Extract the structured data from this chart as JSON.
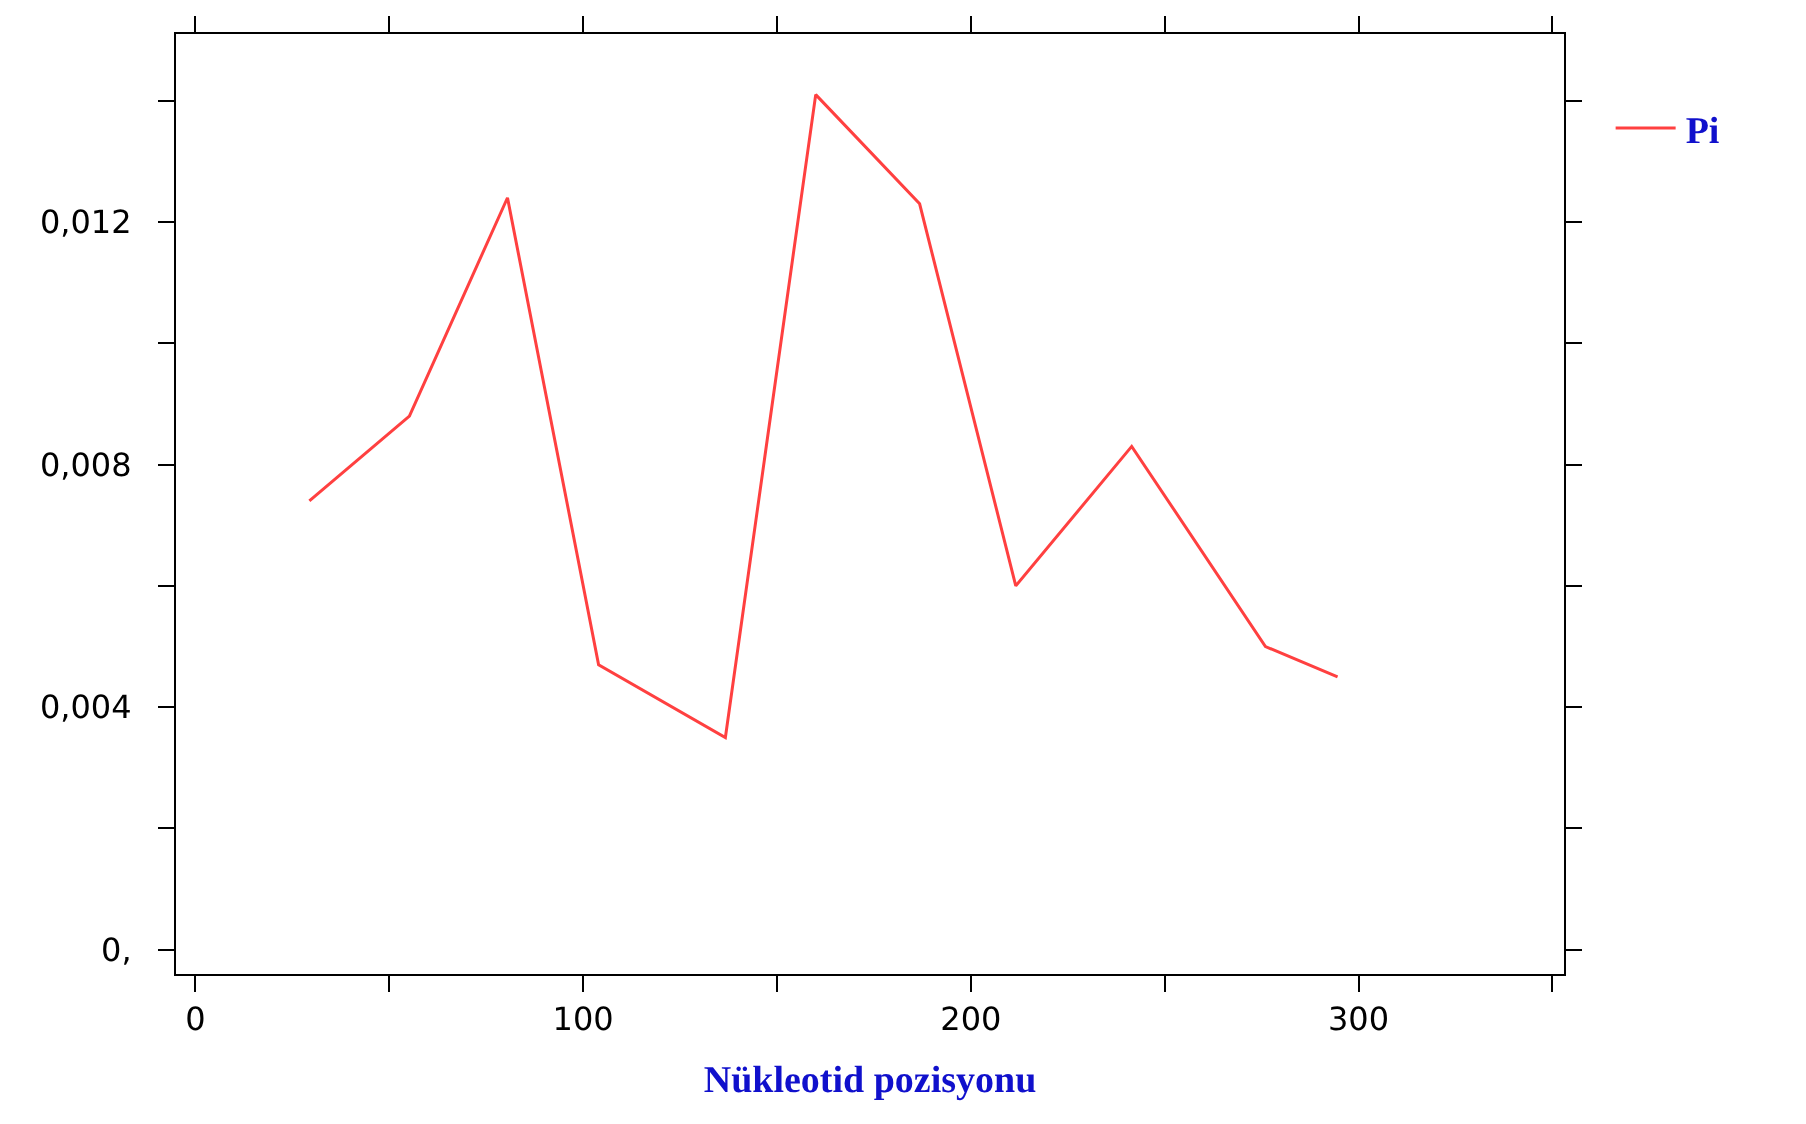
{
  "chart_data": {
    "type": "line",
    "xlabel": "Nükleotid pozisyonu",
    "x": [
      29.4,
      55.2,
      80.5,
      104,
      136.7,
      160,
      186.8,
      211.6,
      241.5,
      276,
      294.6
    ],
    "series": [
      {
        "name": "Pi",
        "color": "#ff4040",
        "values": [
          0.0074,
          0.0088,
          0.0124,
          0.0047,
          0.0035,
          0.0141,
          0.0123,
          0.006,
          0.0083,
          0.005,
          0.0045
        ]
      }
    ],
    "xlim": [
      -5,
      353
    ],
    "ylim": [
      -0.0004,
      0.0151
    ],
    "xticks": [
      0,
      {
        "value": 50,
        "label": null
      },
      100,
      {
        "value": 150,
        "label": null
      },
      200,
      {
        "value": 250,
        "label": null
      },
      300,
      {
        "value": 350,
        "label": null
      }
    ],
    "yticks": [
      {
        "value": 0,
        "label": "0,"
      },
      {
        "value": 0.002,
        "label": null
      },
      {
        "value": 0.004,
        "label": "0,004"
      },
      {
        "value": 0.006,
        "label": null
      },
      {
        "value": 0.008,
        "label": "0,008"
      },
      {
        "value": 0.01,
        "label": null
      },
      {
        "value": 0.012,
        "label": "0,012"
      },
      {
        "value": 0.014,
        "label": null
      }
    ],
    "grid": false,
    "legend": "top right",
    "marker": "none",
    "line_style": "solid"
  }
}
